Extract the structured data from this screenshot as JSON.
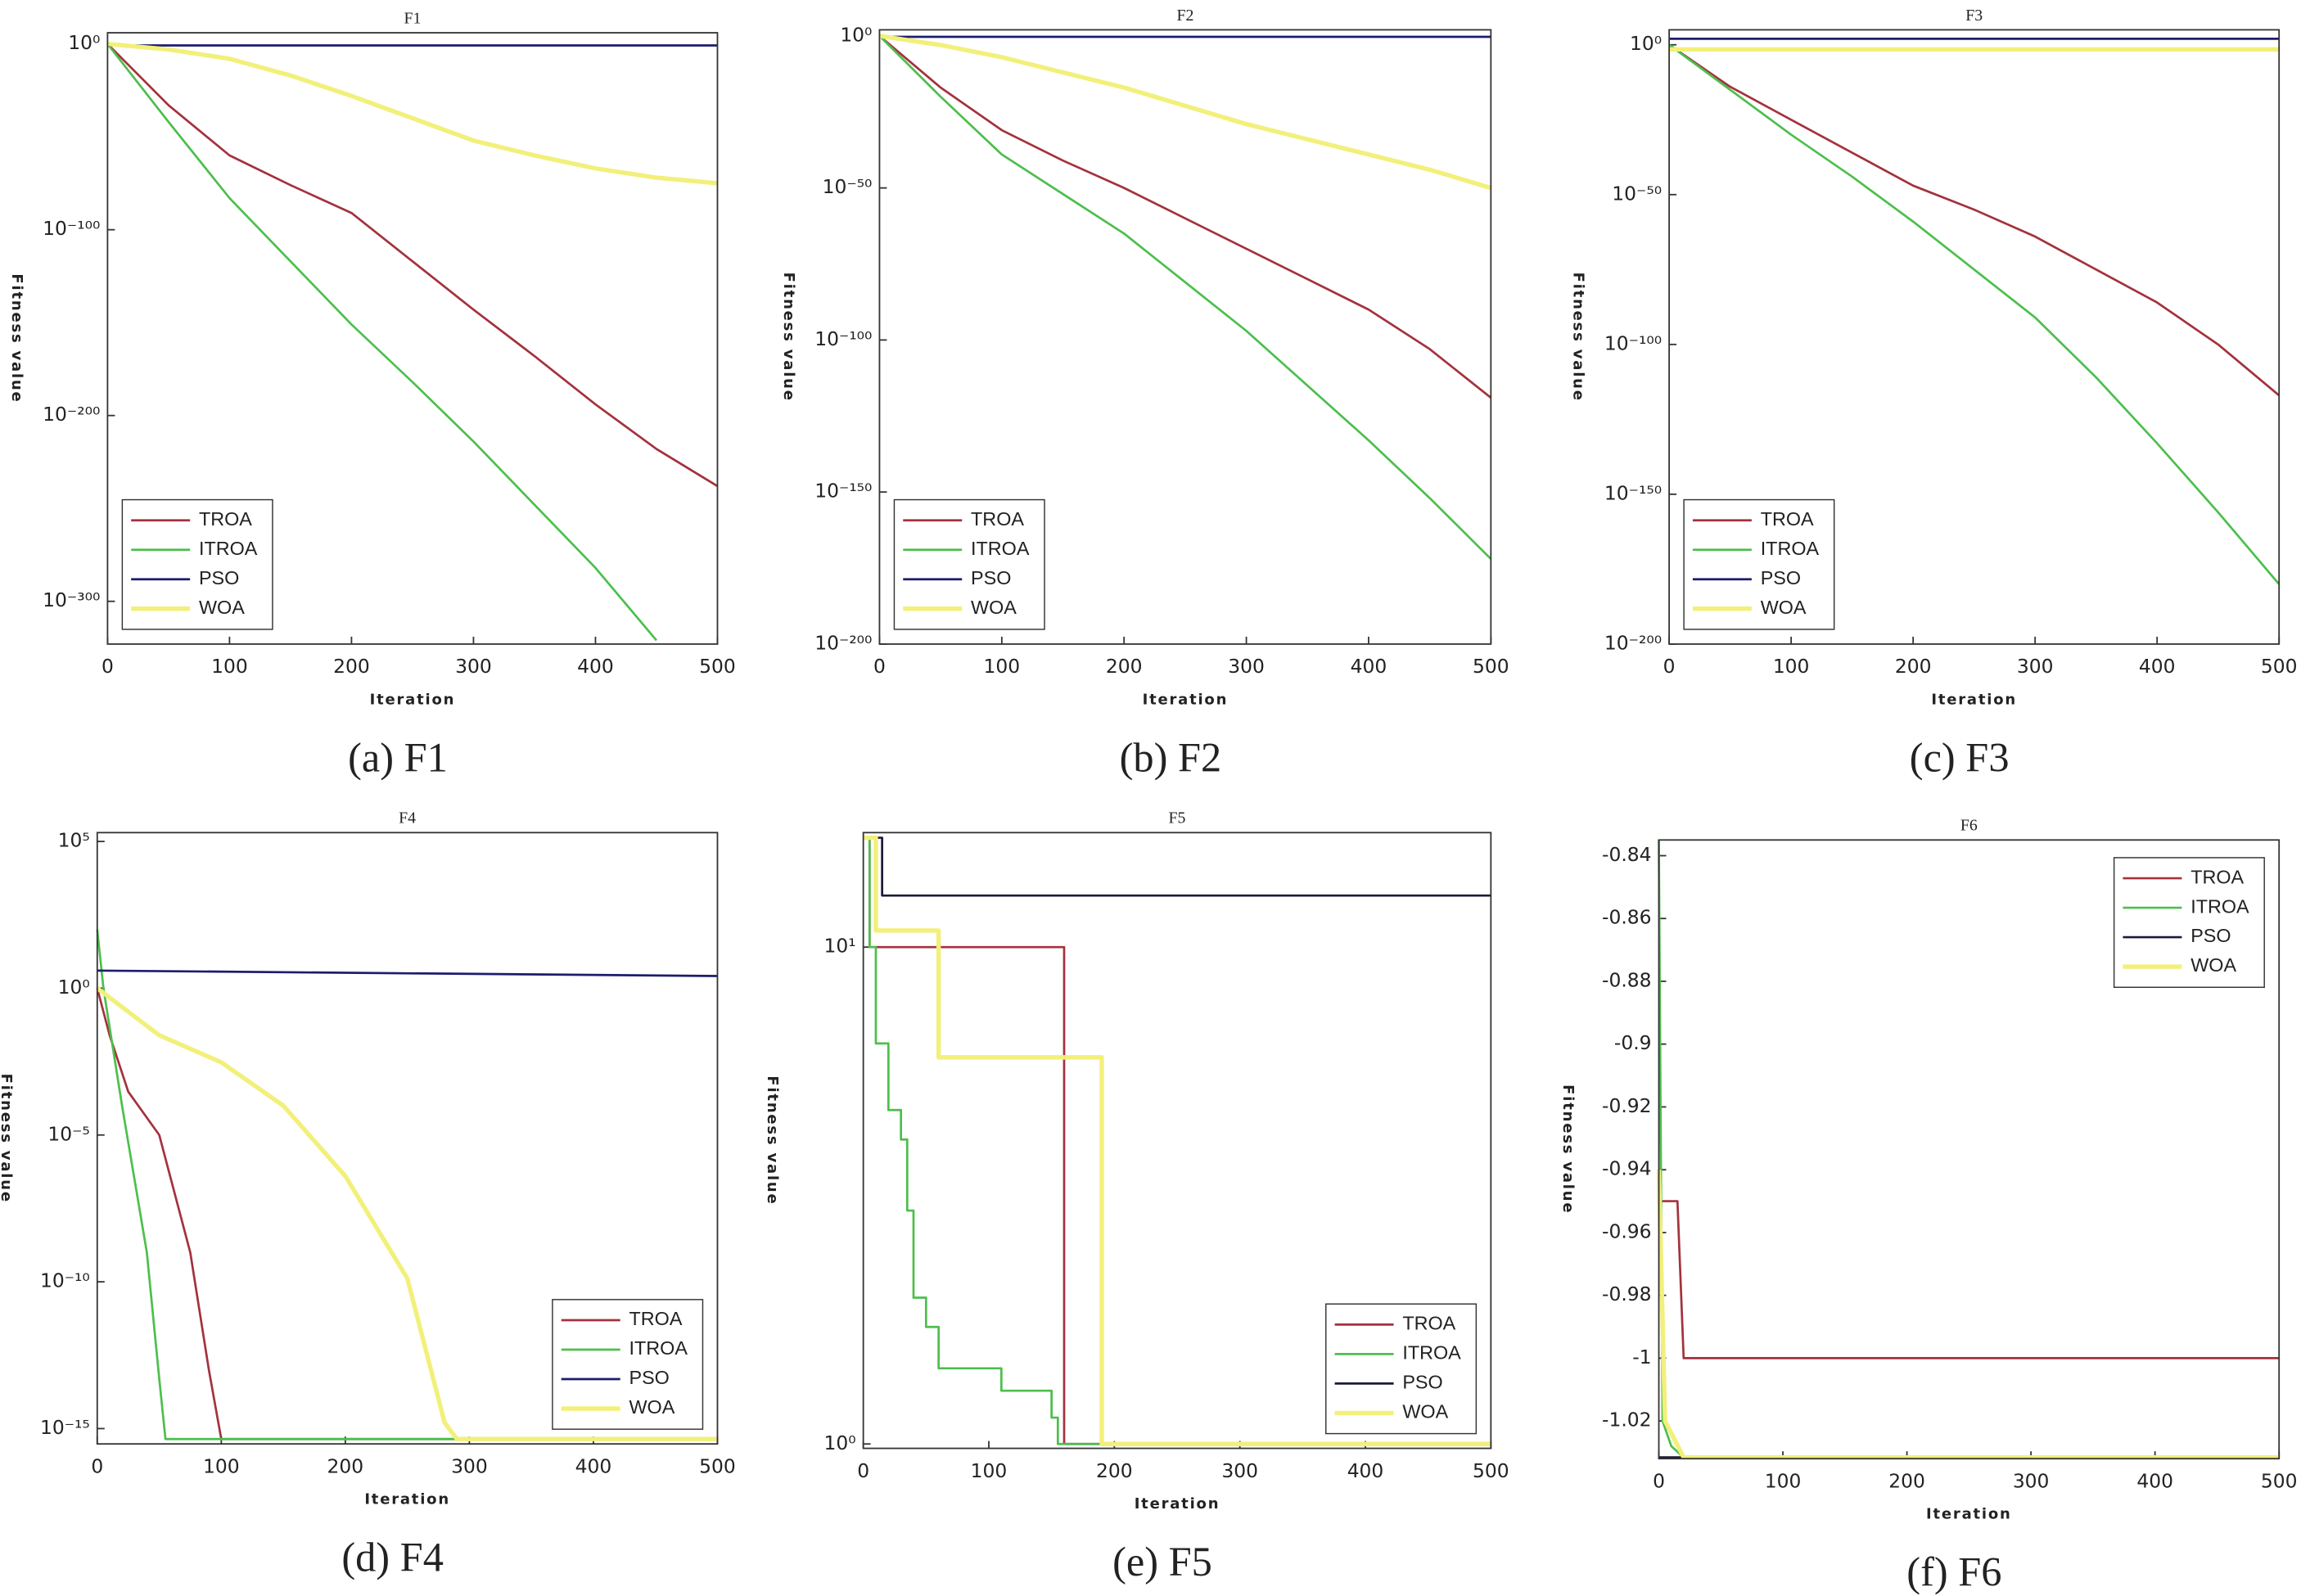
{
  "chart_data": [
    {
      "type": "line",
      "title": "F1",
      "caption": "(a) F1",
      "xlabel": "Iteration",
      "ylabel": "Fitness value",
      "yscale": "log",
      "legend": "lower left",
      "xlim": [
        0,
        500
      ],
      "xticks": [
        0,
        100,
        200,
        300,
        400,
        500
      ],
      "ylim": [
        1e-323,
        1000000.0
      ],
      "yticks": [
        {
          "value": 1,
          "label": "10⁰"
        },
        {
          "value": 1e-100,
          "label": "10⁻¹⁰⁰"
        },
        {
          "value": 1e-200,
          "label": "10⁻²⁰⁰"
        },
        {
          "value": 1e-300,
          "label": "10⁻³⁰⁰"
        }
      ],
      "x": [
        0,
        50,
        100,
        150,
        200,
        250,
        300,
        350,
        400,
        450,
        500
      ],
      "series": [
        {
          "name": "TROA",
          "color": "#a3323c",
          "values": [
            1,
            1e-33,
            1e-60,
            1e-76,
            1e-91,
            1e-117,
            1e-143,
            1e-168,
            1e-194,
            1e-218,
            1e-238
          ]
        },
        {
          "name": "ITROA",
          "color": "#4cbf4c",
          "values": [
            1,
            1e-42,
            1e-83,
            1e-117,
            1e-151,
            1e-182,
            1e-214,
            1e-248,
            1e-282,
            1e-321,
            null
          ]
        },
        {
          "name": "PSO",
          "color": "#1c1c6e",
          "values": [
            0.15,
            0.15,
            0.15,
            0.15,
            0.15,
            0.15,
            0.15,
            0.15,
            0.15,
            0.15,
            0.15
          ]
        },
        {
          "name": "WOA",
          "color": "#f2f07a",
          "values": [
            1,
            0.001,
            1e-08,
            1e-17,
            1e-28,
            1e-40,
            1e-52,
            1e-60,
            1e-67,
            1e-72,
            1e-75
          ]
        }
      ]
    },
    {
      "type": "line",
      "title": "F2",
      "caption": "(b) F2",
      "xlabel": "Iteration",
      "ylabel": "Fitness value",
      "yscale": "log",
      "legend": "lower left",
      "xlim": [
        0,
        500
      ],
      "xticks": [
        0,
        100,
        200,
        300,
        400,
        500
      ],
      "ylim": [
        1e-200,
        100
      ],
      "yticks": [
        {
          "value": 1,
          "label": "10⁰"
        },
        {
          "value": 1e-50,
          "label": "10⁻⁵⁰"
        },
        {
          "value": 1e-100,
          "label": "10⁻¹⁰⁰"
        },
        {
          "value": 1e-150,
          "label": "10⁻¹⁵⁰"
        },
        {
          "value": 1e-200,
          "label": "10⁻²⁰⁰"
        }
      ],
      "x": [
        0,
        50,
        100,
        150,
        200,
        250,
        300,
        350,
        400,
        450,
        500
      ],
      "series": [
        {
          "name": "TROA",
          "color": "#a3323c",
          "values": [
            1,
            1e-17,
            1e-31,
            1e-41,
            1e-50,
            1e-60,
            1e-70,
            1e-80,
            1e-90,
            1e-103,
            1e-119
          ]
        },
        {
          "name": "ITROA",
          "color": "#4cbf4c",
          "values": [
            1,
            1e-20,
            1e-39,
            1e-52,
            1e-65,
            1e-81,
            1e-97,
            1e-115,
            1e-133,
            1e-152,
            1e-172
          ]
        },
        {
          "name": "PSO",
          "color": "#1c1c6e",
          "values": [
            0.5,
            0.5,
            0.5,
            0.5,
            0.5,
            0.5,
            0.5,
            0.5,
            0.5,
            0.5,
            0.5
          ]
        },
        {
          "name": "WOA",
          "color": "#f2f07a",
          "values": [
            1,
            0.001,
            1e-07,
            1e-12,
            1e-17,
            1e-23,
            1e-29,
            1e-34,
            1e-39,
            1e-44,
            1e-50
          ]
        }
      ]
    },
    {
      "type": "line",
      "title": "F3",
      "caption": "(c) F3",
      "xlabel": "Iteration",
      "ylabel": "Fitness value",
      "yscale": "log",
      "legend": "lower left",
      "xlim": [
        0,
        500
      ],
      "xticks": [
        0,
        100,
        200,
        300,
        400,
        500
      ],
      "ylim": [
        1e-200,
        100000
      ],
      "yticks": [
        {
          "value": 1,
          "label": "10⁰"
        },
        {
          "value": 1e-50,
          "label": "10⁻⁵⁰"
        },
        {
          "value": 1e-100,
          "label": "10⁻¹⁰⁰"
        },
        {
          "value": 1e-150,
          "label": "10⁻¹⁵⁰"
        },
        {
          "value": 1e-200,
          "label": "10⁻²⁰⁰"
        }
      ],
      "x": [
        0,
        50,
        100,
        150,
        200,
        250,
        300,
        350,
        400,
        450,
        500
      ],
      "series": [
        {
          "name": "TROA",
          "color": "#a3323c",
          "values": [
            1,
            1e-14,
            1e-25,
            1e-36,
            1e-47,
            1e-55,
            1e-64,
            1e-75,
            1e-86,
            1e-100,
            1e-117
          ]
        },
        {
          "name": "ITROA",
          "color": "#4cbf4c",
          "values": [
            1,
            1e-15,
            1e-30,
            1e-44,
            1e-59,
            1e-75,
            1e-91,
            1e-111,
            1e-133,
            1e-156,
            1e-180
          ]
        },
        {
          "name": "PSO",
          "color": "#1c1c6e",
          "values": [
            100,
            100,
            100,
            100,
            100,
            100,
            100,
            100,
            100,
            100,
            100
          ]
        },
        {
          "name": "WOA",
          "color": "#f2f07a",
          "values": [
            0.03,
            0.03,
            0.03,
            0.03,
            0.03,
            0.03,
            0.03,
            0.03,
            0.03,
            0.03,
            0.03
          ]
        }
      ]
    },
    {
      "type": "line",
      "title": "F4",
      "caption": "(d) F4",
      "xlabel": "Iteration",
      "ylabel": "Fitness value",
      "yscale": "log",
      "legend": "lower right",
      "xlim": [
        0,
        500
      ],
      "xticks": [
        0,
        100,
        200,
        300,
        400,
        500
      ],
      "ylim": [
        3e-16,
        200000
      ],
      "yticks": [
        {
          "value": 100000,
          "label": "10⁵"
        },
        {
          "value": 1,
          "label": "10⁰"
        },
        {
          "value": 1e-05,
          "label": "10⁻⁵"
        },
        {
          "value": 1e-10,
          "label": "10⁻¹⁰"
        },
        {
          "value": 1e-15,
          "label": "10⁻¹⁵"
        }
      ],
      "series": [
        {
          "name": "TROA",
          "color": "#a3323c",
          "x": [
            0,
            10,
            25,
            50,
            75,
            90,
            100,
            500
          ],
          "values": [
            1,
            0.025,
            0.0003,
            1e-05,
            1e-09,
            1e-13,
            4.4e-16,
            4.4e-16
          ]
        },
        {
          "name": "ITROA",
          "color": "#4cbf4c",
          "x": [
            0,
            5,
            20,
            40,
            50,
            55,
            500
          ],
          "values": [
            100,
            1,
            0.0001,
            1e-09,
            5e-14,
            4.4e-16,
            4.4e-16
          ]
        },
        {
          "name": "PSO",
          "color": "#1c1c6e",
          "x": [
            0,
            500
          ],
          "values": [
            4,
            2.6
          ]
        },
        {
          "name": "WOA",
          "color": "#f2f07a",
          "x": [
            0,
            50,
            100,
            150,
            200,
            250,
            280,
            290,
            500
          ],
          "values": [
            1,
            0.025,
            0.003,
            0.0001,
            4e-07,
            1.3e-10,
            1.6e-15,
            4.4e-16,
            4.4e-16
          ]
        }
      ]
    },
    {
      "type": "line",
      "title": "F5",
      "caption": "(e) F5",
      "xlabel": "Iteration",
      "ylabel": "Fitness value",
      "yscale": "log",
      "legend": "lower right",
      "xlim": [
        0,
        500
      ],
      "xticks": [
        0,
        100,
        200,
        300,
        400,
        500
      ],
      "ylim": [
        0.98,
        17
      ],
      "yticks": [
        {
          "value": 1,
          "label": "10⁰"
        },
        {
          "value": 10,
          "label": "10¹"
        }
      ],
      "series": [
        {
          "name": "TROA",
          "color": "#a3323c",
          "x": [
            0,
            5,
            5,
            160,
            160,
            500
          ],
          "values": [
            16.6,
            16.6,
            10,
            10,
            1,
            1
          ]
        },
        {
          "name": "ITROA",
          "color": "#4cbf4c",
          "x": [
            0,
            5,
            5,
            10,
            10,
            20,
            20,
            30,
            30,
            35,
            35,
            40,
            40,
            50,
            50,
            60,
            60,
            110,
            110,
            150,
            150,
            155,
            155,
            500
          ],
          "values": [
            16.6,
            16.6,
            10,
            10,
            6.4,
            6.4,
            4.7,
            4.7,
            4.1,
            4.1,
            2.95,
            2.95,
            1.97,
            1.97,
            1.72,
            1.72,
            1.42,
            1.42,
            1.28,
            1.28,
            1.13,
            1.13,
            1,
            1
          ]
        },
        {
          "name": "PSO",
          "color": "#1a1a3a",
          "x": [
            0,
            15,
            15,
            500
          ],
          "values": [
            16.6,
            16.6,
            12.7,
            12.7
          ]
        },
        {
          "name": "WOA",
          "color": "#f2f07a",
          "x": [
            0,
            10,
            10,
            60,
            60,
            190,
            190,
            500
          ],
          "values": [
            16.6,
            16.6,
            10.8,
            10.8,
            6,
            6,
            1,
            1
          ]
        }
      ]
    },
    {
      "type": "line",
      "title": "F6",
      "caption": "(f) F6",
      "xlabel": "Iteration",
      "ylabel": "Fitness value",
      "legend": "upper right",
      "xlim": [
        0,
        500
      ],
      "xticks": [
        0,
        100,
        200,
        300,
        400,
        500
      ],
      "ylim": [
        -1.032,
        -0.835
      ],
      "yticks": [
        -0.84,
        -0.86,
        -0.88,
        -0.9,
        -0.92,
        -0.94,
        -0.96,
        -0.98,
        -1,
        -1.02
      ],
      "series": [
        {
          "name": "TROA",
          "color": "#a3323c",
          "x": [
            0,
            15,
            20,
            500
          ],
          "values": [
            -0.95,
            -0.95,
            -1,
            -1
          ]
        },
        {
          "name": "ITROA",
          "color": "#4cbf4c",
          "x": [
            0,
            3,
            10,
            20,
            500
          ],
          "values": [
            -0.835,
            -1.02,
            -1.028,
            -1.0316,
            -1.0316
          ]
        },
        {
          "name": "PSO",
          "color": "#1a1a3a",
          "x": [
            0,
            500
          ],
          "values": [
            -1.0316,
            -1.0316
          ]
        },
        {
          "name": "WOA",
          "color": "#f2f07a",
          "x": [
            0,
            5,
            20,
            500
          ],
          "values": [
            -0.94,
            -1.02,
            -1.0316,
            -1.0316
          ]
        }
      ]
    }
  ]
}
